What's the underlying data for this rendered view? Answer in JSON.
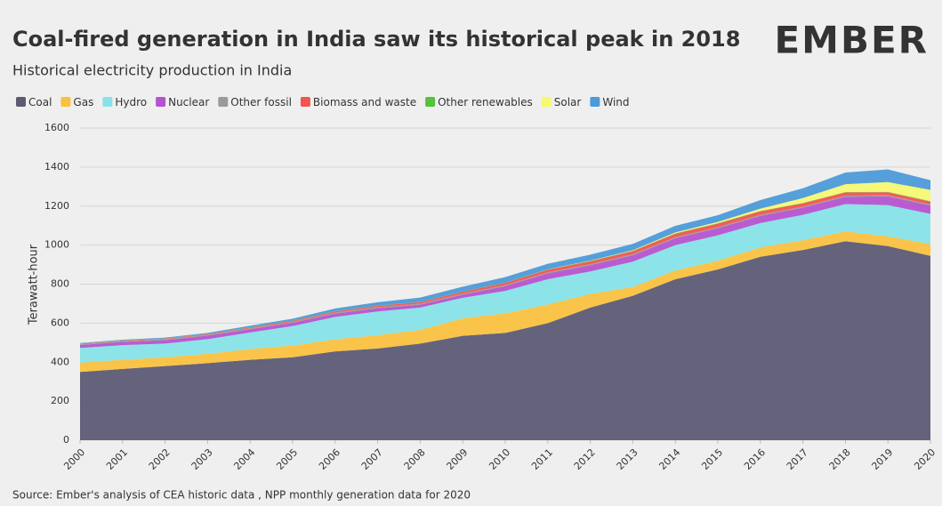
{
  "chart_data": {
    "type": "stacked-area",
    "title": "Coal-fired generation in India saw its historical peak in 2018",
    "subtitle": "Historical electricity production in India",
    "logo": "EMBER",
    "ylabel": "Terawatt-hour",
    "source": "Source: Ember's analysis of CEA historic data , NPP monthly generation data for 2020",
    "x": [
      2000,
      2001,
      2002,
      2003,
      2004,
      2005,
      2006,
      2007,
      2008,
      2009,
      2010,
      2011,
      2012,
      2013,
      2014,
      2015,
      2016,
      2017,
      2018,
      2019,
      2020
    ],
    "xlim": [
      2000,
      2020
    ],
    "xticks": [
      2000,
      2001,
      2002,
      2003,
      2004,
      2005,
      2006,
      2007,
      2008,
      2009,
      2010,
      2011,
      2012,
      2013,
      2014,
      2015,
      2016,
      2017,
      2018,
      2019,
      2020
    ],
    "ylim": [
      0,
      1600
    ],
    "yticks": [
      0,
      200,
      400,
      600,
      800,
      1000,
      1200,
      1400,
      1600
    ],
    "grid": true,
    "legend": "top",
    "series": [
      {
        "name": "Coal",
        "color": "#5d5b74",
        "values": [
          350,
          365,
          380,
          395,
          412,
          425,
          455,
          470,
          495,
          535,
          550,
          600,
          680,
          740,
          825,
          875,
          940,
          975,
          1020,
          995,
          945
        ]
      },
      {
        "name": "Gas",
        "color": "#f9c13f",
        "values": [
          48,
          47,
          45,
          48,
          55,
          60,
          62,
          68,
          70,
          90,
          100,
          95,
          70,
          45,
          45,
          45,
          48,
          50,
          50,
          50,
          60
        ]
      },
      {
        "name": "Hydro",
        "color": "#86e3e8",
        "values": [
          75,
          75,
          70,
          75,
          85,
          100,
          115,
          122,
          115,
          105,
          115,
          130,
          115,
          130,
          130,
          130,
          125,
          130,
          140,
          160,
          155
        ]
      },
      {
        "name": "Nuclear",
        "color": "#b553cf",
        "values": [
          15,
          17,
          18,
          18,
          17,
          17,
          17,
          17,
          15,
          16,
          25,
          30,
          32,
          33,
          35,
          37,
          37,
          37,
          38,
          45,
          43
        ]
      },
      {
        "name": "Other fossil",
        "color": "#9a9a9a",
        "values": [
          5,
          5,
          5,
          5,
          5,
          5,
          5,
          5,
          5,
          5,
          5,
          5,
          5,
          5,
          5,
          5,
          5,
          5,
          5,
          5,
          5
        ]
      },
      {
        "name": "Biomass and waste",
        "color": "#f2544f",
        "values": [
          2,
          2,
          3,
          3,
          4,
          5,
          6,
          7,
          8,
          10,
          12,
          14,
          15,
          16,
          18,
          18,
          18,
          17,
          17,
          16,
          15
        ]
      },
      {
        "name": "Other renewables",
        "color": "#55c13c",
        "values": [
          1,
          1,
          1,
          1,
          1,
          1,
          1,
          1,
          1,
          1,
          1,
          1,
          2,
          2,
          2,
          2,
          2,
          2,
          2,
          2,
          2
        ]
      },
      {
        "name": "Solar",
        "color": "#f6f872",
        "values": [
          0,
          0,
          0,
          0,
          0,
          0,
          0,
          0,
          0,
          0,
          0,
          1,
          2,
          3,
          5,
          7,
          12,
          25,
          40,
          50,
          58
        ]
      },
      {
        "name": "Wind",
        "color": "#4c9ad8",
        "values": [
          2,
          3,
          4,
          5,
          8,
          10,
          14,
          17,
          22,
          25,
          28,
          28,
          30,
          32,
          34,
          34,
          44,
          50,
          60,
          65,
          50
        ]
      }
    ]
  }
}
